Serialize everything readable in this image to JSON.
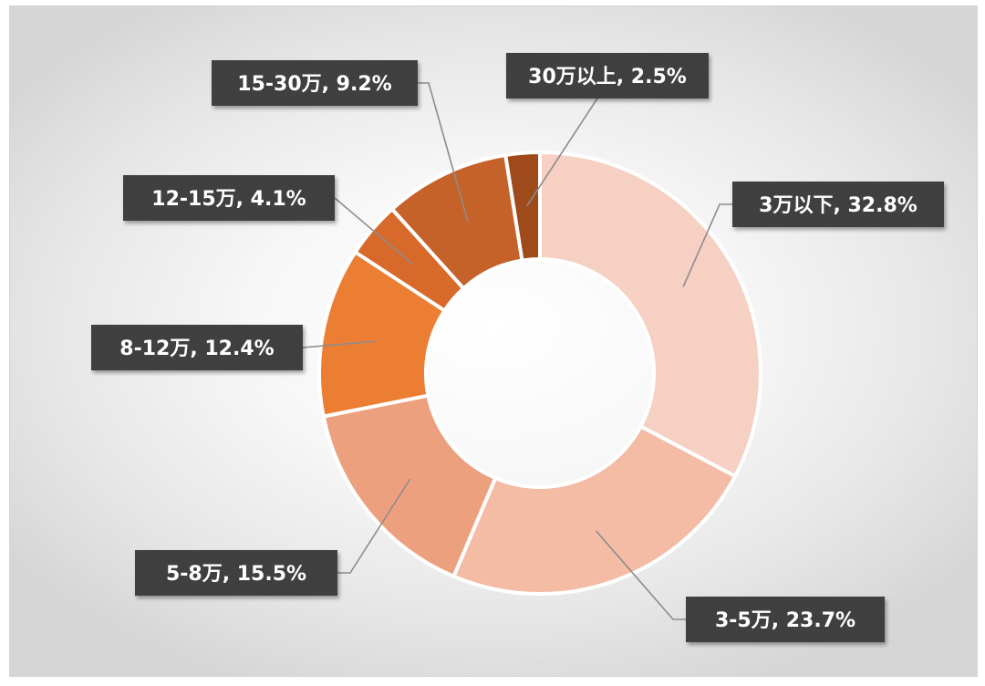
{
  "chart_data": {
    "type": "donut",
    "categories": [
      "3万以下",
      "3-5万",
      "5-8万",
      "8-12万",
      "12-15万",
      "15-30万",
      "30万以上"
    ],
    "values": [
      32.8,
      23.7,
      15.5,
      12.4,
      4.1,
      9.2,
      2.5
    ],
    "unit": "%",
    "data_labels": [
      "3万以下, 32.8%",
      "3-5万, 23.7%",
      "5-8万, 15.5%",
      "8-12万, 12.4%",
      "12-15万, 4.1%",
      "15-30万, 9.2%",
      "30万以上, 2.5%"
    ],
    "colors": [
      "#F6D0C2",
      "#F4BBA5",
      "#EDA07E",
      "#EC7E33",
      "#D7692A",
      "#C5622A",
      "#9E4A1A"
    ],
    "label_box_color": "#3f3f3f",
    "leader_line_color": "#8c8c8c",
    "background": "radial-gradient white to light grey"
  }
}
